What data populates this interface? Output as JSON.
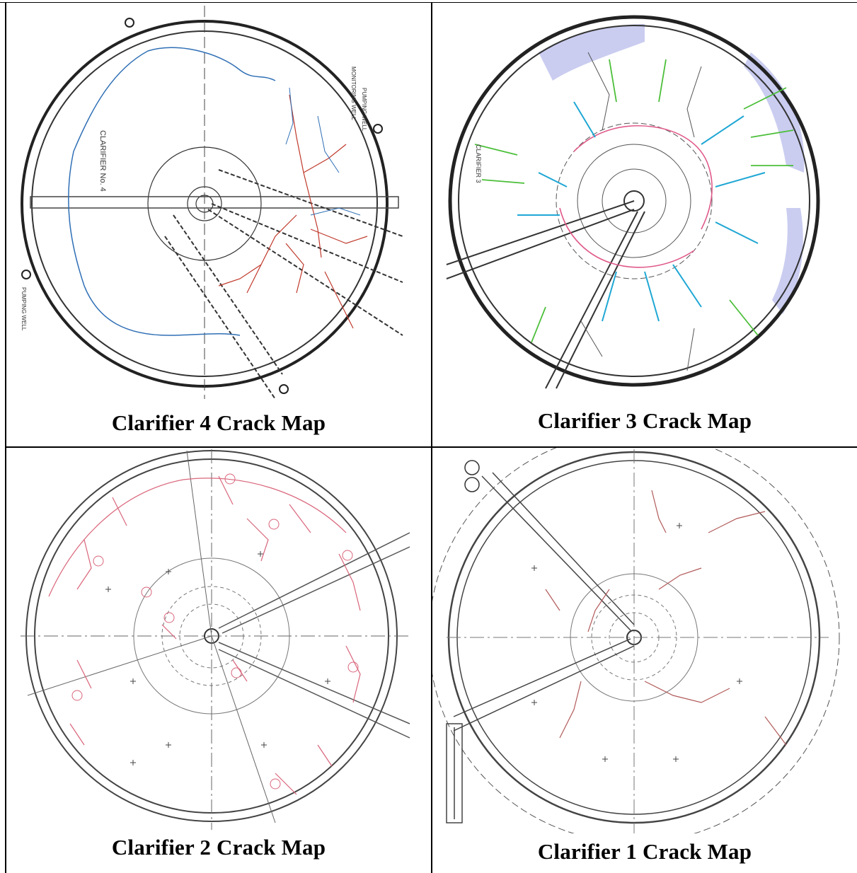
{
  "cells": [
    {
      "caption": "Clarifier 4 Crack Map",
      "crack_color": "#c0392b",
      "accent_color": "#2f6fb5",
      "drawing": {
        "clarifier_label": "CLARIFIER No. 4",
        "well_labels": [
          "MONITORING WELL",
          "PUMPING WELL",
          "PUMPING WELL"
        ]
      }
    },
    {
      "caption": "Clarifier 3 Crack Map",
      "crack_colors": [
        "#e05a8a",
        "#1fa7d4",
        "#4cbf3a",
        "#555555"
      ],
      "hatch_color": "#5b63c9",
      "drawing": {
        "clarifier_label": "CLARIFIER 3"
      }
    },
    {
      "caption": "Clarifier 2 Crack Map",
      "crack_color": "#d9657a"
    },
    {
      "caption": "Clarifier 1 Crack Map",
      "crack_color": "#b25a5a"
    }
  ]
}
